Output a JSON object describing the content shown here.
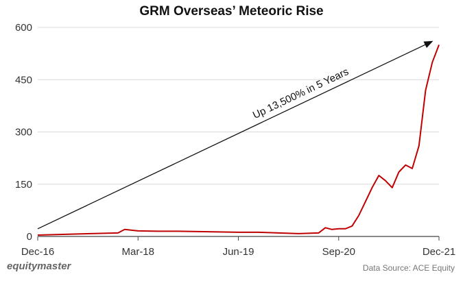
{
  "chart_data": {
    "type": "line",
    "title": "GRM Overseas’ Meteoric Rise",
    "xlabel": "",
    "ylabel": "",
    "ylim": [
      0,
      600
    ],
    "y_ticks": [
      0,
      150,
      300,
      450,
      600
    ],
    "x_ticks": [
      "Dec-16",
      "Mar-18",
      "Jun-19",
      "Sep-20",
      "Dec-21"
    ],
    "grid": "horizontal",
    "color": "#c00000",
    "series": [
      {
        "x": [
          "Dec-16",
          "Jun-17",
          "Dec-17",
          "Jan-18",
          "Mar-18",
          "Jun-18",
          "Sep-18",
          "Dec-18",
          "Mar-19",
          "Jun-19",
          "Sep-19",
          "Dec-19",
          "Mar-20",
          "Jun-20",
          "Jul-20",
          "Aug-20",
          "Sep-20",
          "Oct-20",
          "Nov-20",
          "Dec-20",
          "Jan-21",
          "Feb-21",
          "Mar-21",
          "Apr-21",
          "May-21",
          "Jun-21",
          "Jul-21",
          "Aug-21",
          "Sep-21",
          "Oct-21",
          "Nov-21",
          "Dec-21"
        ],
        "values": [
          4,
          7,
          10,
          20,
          16,
          15,
          15,
          14,
          13,
          12,
          12,
          10,
          8,
          10,
          25,
          20,
          22,
          22,
          30,
          60,
          100,
          140,
          175,
          160,
          140,
          185,
          205,
          195,
          260,
          420,
          500,
          550
        ]
      }
    ]
  },
  "annotation": {
    "text": "Up 13,500% in 5 Years",
    "from": [
      "Dec-16",
      22
    ],
    "to": [
      "Nov-21",
      560
    ]
  },
  "footer": {
    "brand": "equitymaster",
    "source": "Data Source: ACE Equity"
  }
}
